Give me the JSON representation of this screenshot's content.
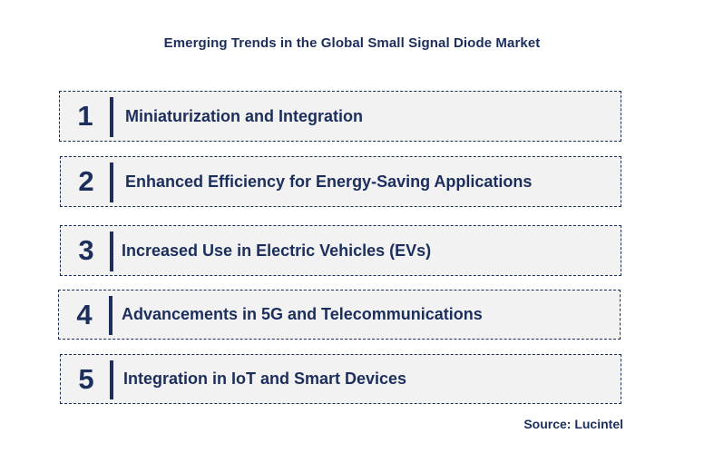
{
  "title": "Emerging Trends in the Global Small Signal Diode Market",
  "trends": [
    {
      "number": "1",
      "label": "Miniaturization and Integration"
    },
    {
      "number": "2",
      "label": "Enhanced Efficiency for Energy-Saving Applications"
    },
    {
      "number": "3",
      "label": "Increased Use in Electric Vehicles (EVs)"
    },
    {
      "number": "4",
      "label": "Advancements in 5G and Telecommunications"
    },
    {
      "number": "5",
      "label": "Integration in IoT and Smart Devices"
    }
  ],
  "source": "Source: Lucintel",
  "colors": {
    "text": "#1c2e5c",
    "box_background": "#f2f2f2",
    "box_border": "#1c2e5c"
  }
}
